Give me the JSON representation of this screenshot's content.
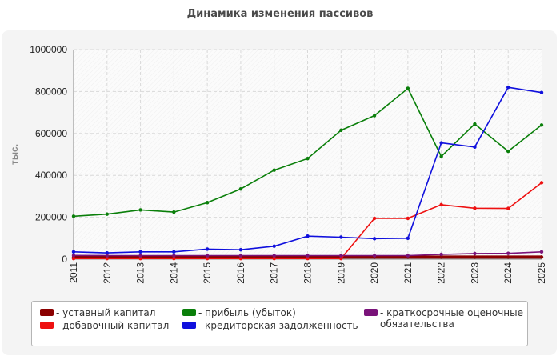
{
  "chart_data": {
    "type": "line",
    "title": "Динамика изменения пассивов",
    "ylabel": "тыс.",
    "xlabel": "",
    "x": [
      "2011",
      "2012",
      "2013",
      "2014",
      "2015",
      "2016",
      "2017",
      "2018",
      "2019",
      "2020",
      "2021",
      "2022",
      "2023",
      "2024",
      "2025"
    ],
    "ylim": [
      0,
      1000000
    ],
    "yticks": [
      "0",
      "200000",
      "400000",
      "600000",
      "800000",
      "1000000"
    ],
    "grid": true,
    "legend_position": "bottom",
    "series": [
      {
        "name": "- уставный капитал",
        "color": "#8b0000",
        "values": [
          10000,
          10000,
          10000,
          10000,
          10000,
          10000,
          10000,
          10000,
          10000,
          10000,
          10000,
          10000,
          10000,
          10000,
          10000
        ]
      },
      {
        "name": "- добавочный капитал",
        "color": "#ee1111",
        "values": [
          3000,
          3000,
          3000,
          3000,
          3000,
          3000,
          3000,
          3000,
          3000,
          195000,
          195000,
          260000,
          243000,
          242000,
          365000
        ]
      },
      {
        "name": "- прибыль (убыток)",
        "color": "#0a7f0a",
        "values": [
          205000,
          215000,
          235000,
          225000,
          270000,
          335000,
          425000,
          480000,
          615000,
          685000,
          815000,
          490000,
          645000,
          515000,
          640000
        ]
      },
      {
        "name": "- кредиторская задолженность",
        "color": "#1010dd",
        "values": [
          35000,
          30000,
          35000,
          35000,
          48000,
          45000,
          62000,
          110000,
          105000,
          98000,
          100000,
          555000,
          535000,
          820000,
          795000
        ]
      },
      {
        "name": "- краткосрочные оценочные обязательства",
        "color": "#7a137a",
        "values": [
          18000,
          17000,
          17000,
          17000,
          17000,
          17000,
          17000,
          17000,
          17000,
          17000,
          17000,
          23000,
          27000,
          28000,
          35000
        ]
      }
    ]
  },
  "legend_layout": [
    0,
    2,
    4,
    1,
    3
  ]
}
